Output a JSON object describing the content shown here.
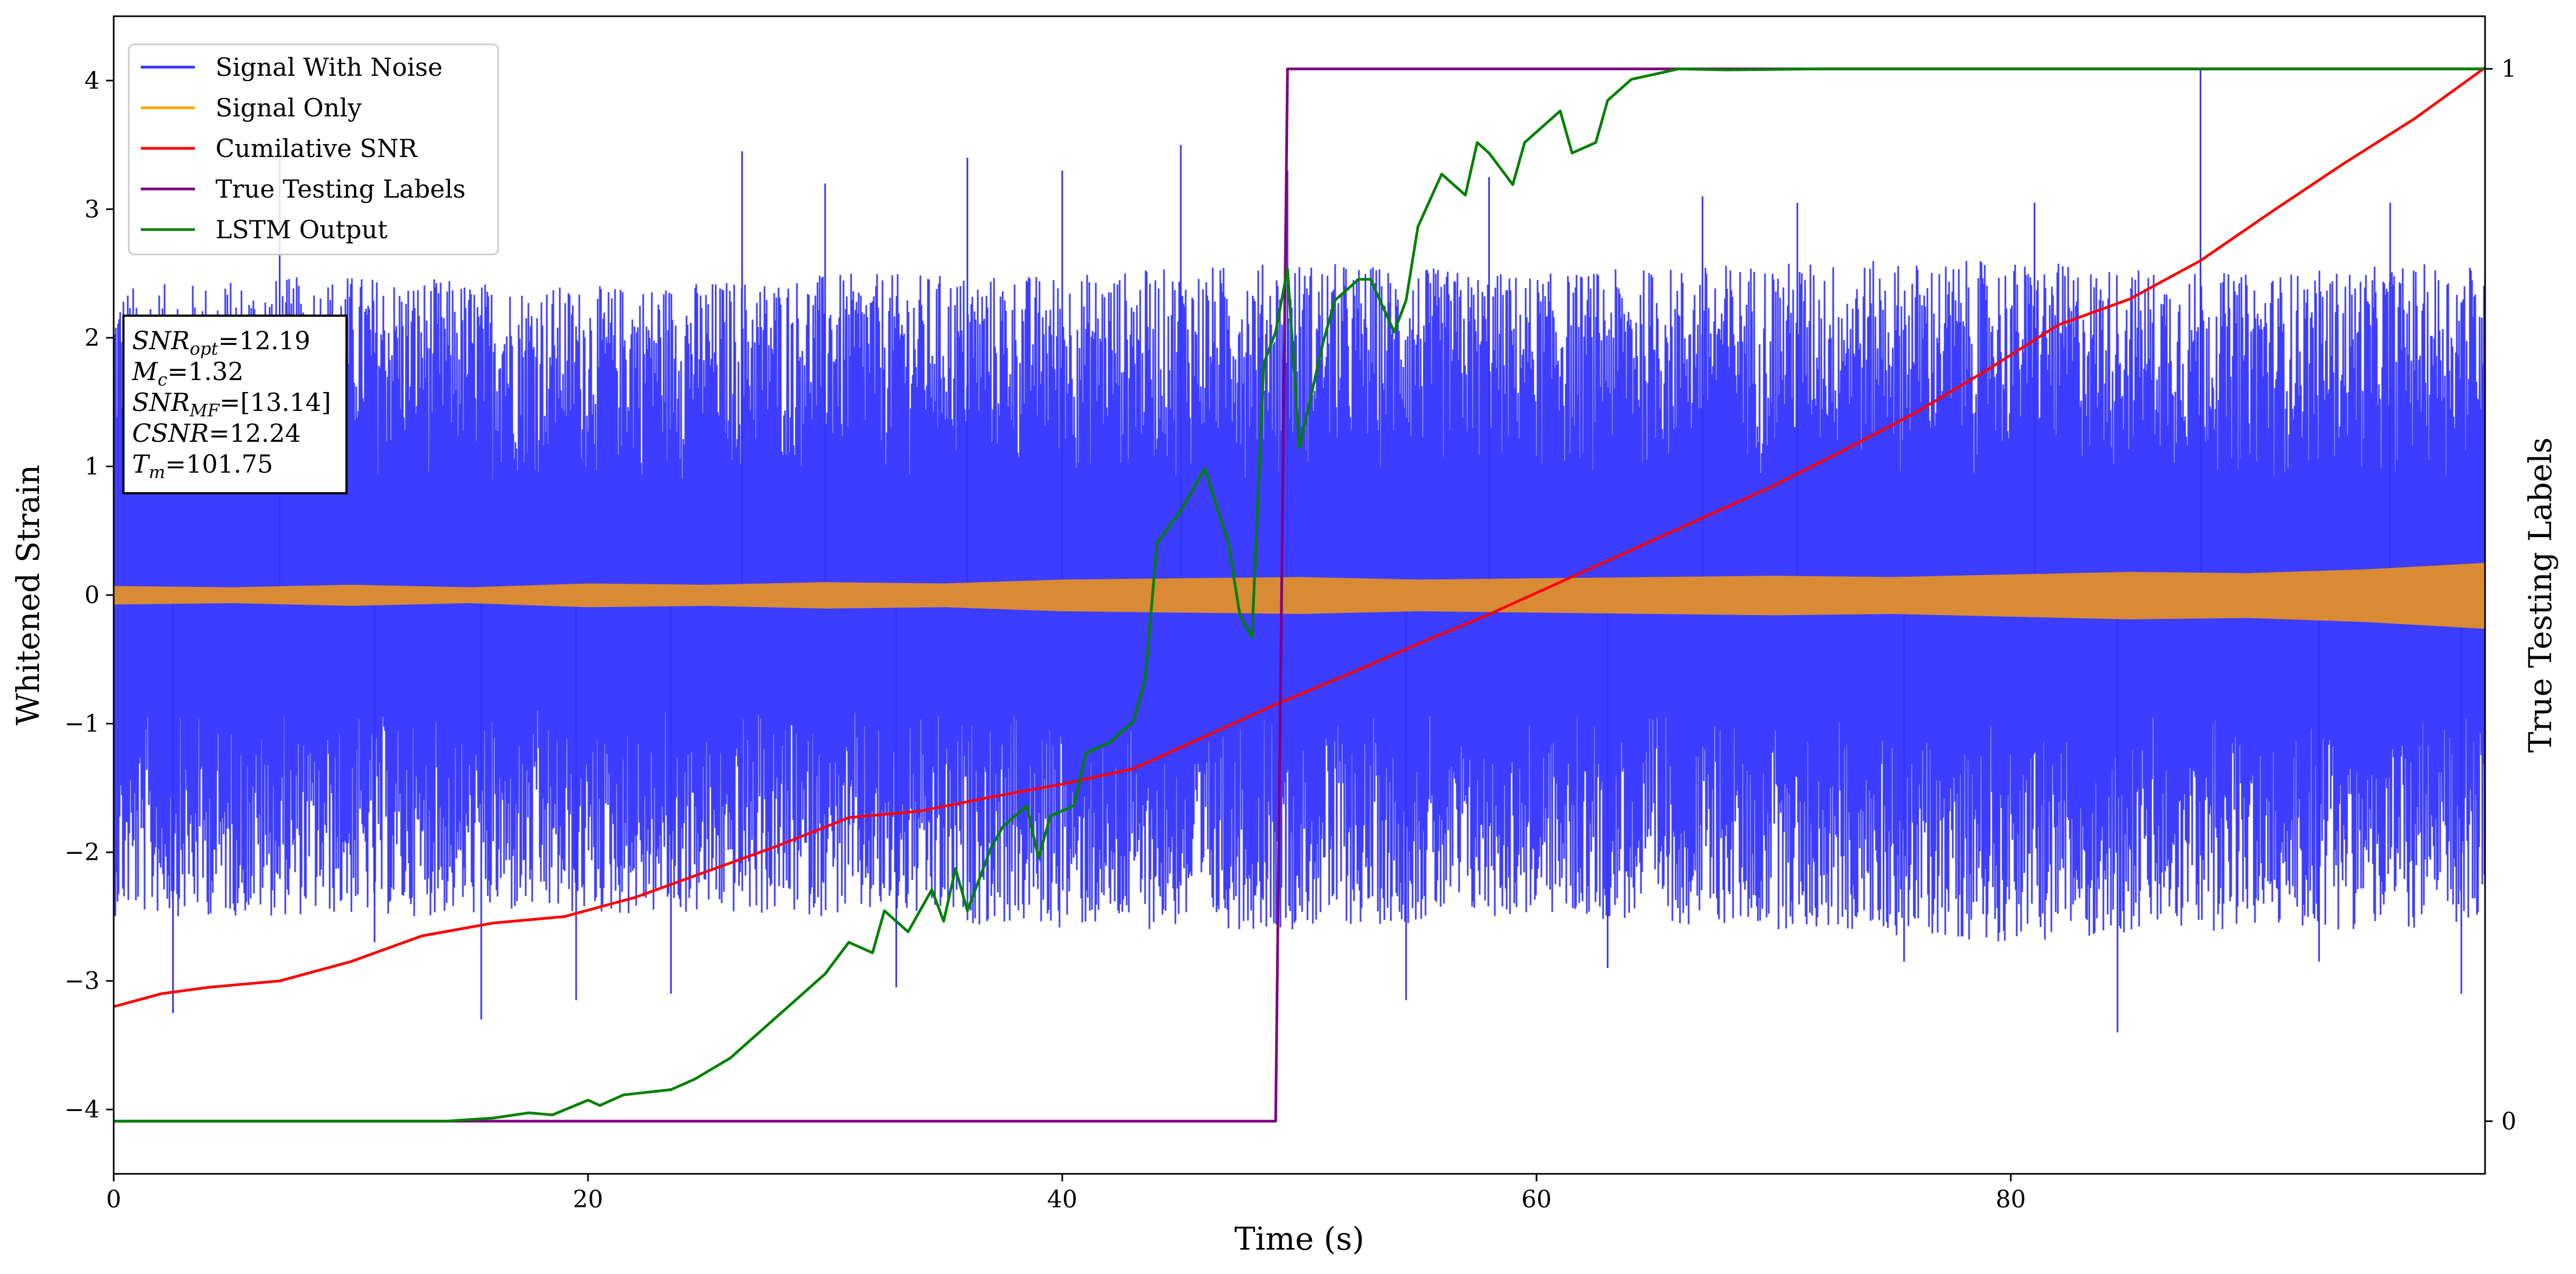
{
  "chart_data": {
    "type": "line",
    "xlabel": "Time (s)",
    "ylabel": "Whitened Strain",
    "y2label": "True Testing Labels",
    "xlim": [
      0,
      100
    ],
    "ylim": [
      -4.5,
      4.5
    ],
    "y2lim": [
      -0.05,
      1.05
    ],
    "x_ticks": [
      0,
      20,
      40,
      60,
      80
    ],
    "y_ticks": [
      -4,
      -3,
      -2,
      -1,
      0,
      1,
      2,
      3,
      4
    ],
    "y2_ticks": [
      0,
      1
    ],
    "legend_position": "top-left",
    "grid": false,
    "series": [
      {
        "name": "Signal With Noise",
        "color": "#3333ff",
        "kind": "noise",
        "envelope_x": [
          0,
          10,
          20,
          30,
          40,
          50,
          60,
          70,
          80,
          90,
          100
        ],
        "envelope_upper": [
          2.4,
          2.5,
          2.4,
          2.5,
          2.5,
          2.6,
          2.5,
          2.6,
          2.6,
          2.5,
          2.6
        ],
        "envelope_lower": [
          -2.5,
          -2.5,
          -2.5,
          -2.5,
          -2.6,
          -2.6,
          -2.5,
          -2.6,
          -2.7,
          -2.6,
          -2.6
        ],
        "spikes": [
          [
            2.5,
            -3.25
          ],
          [
            7,
            3.4
          ],
          [
            11,
            -2.7
          ],
          [
            15.5,
            -3.3
          ],
          [
            19.5,
            -3.15
          ],
          [
            23.5,
            -3.1
          ],
          [
            26.5,
            3.45
          ],
          [
            30,
            3.2
          ],
          [
            33,
            -3.05
          ],
          [
            36,
            3.4
          ],
          [
            40,
            3.3
          ],
          [
            45,
            3.5
          ],
          [
            49.5,
            3.3
          ],
          [
            54.5,
            -3.15
          ],
          [
            58,
            3.25
          ],
          [
            63,
            -2.9
          ],
          [
            67,
            3.1
          ],
          [
            71,
            3.05
          ],
          [
            75.5,
            -2.85
          ],
          [
            81,
            3.05
          ],
          [
            84.5,
            -3.4
          ],
          [
            88,
            4.1
          ],
          [
            93,
            -2.85
          ],
          [
            96,
            3.05
          ],
          [
            99,
            -3.1
          ]
        ]
      },
      {
        "name": "Signal Only",
        "color": "#ffa500",
        "kind": "chirp",
        "envelope_x": [
          0,
          5,
          10,
          15,
          20,
          25,
          30,
          35,
          40,
          45,
          50,
          55,
          60,
          65,
          70,
          75,
          80,
          85,
          90,
          95,
          99,
          100
        ],
        "envelope": [
          0.07,
          0.06,
          0.08,
          0.06,
          0.09,
          0.08,
          0.1,
          0.09,
          0.12,
          0.13,
          0.14,
          0.12,
          0.13,
          0.14,
          0.15,
          0.14,
          0.16,
          0.18,
          0.17,
          0.2,
          0.24,
          0.25
        ]
      },
      {
        "name": "Cumilative SNR",
        "color": "#ff0000",
        "x": [
          0,
          2,
          4,
          7,
          10,
          13,
          16,
          19,
          22,
          25,
          28,
          31,
          34,
          37,
          40,
          43,
          46,
          49,
          52,
          55,
          58,
          61,
          64,
          67,
          70,
          73,
          76,
          79,
          82,
          85,
          88,
          91,
          94,
          97,
          100
        ],
        "y": [
          -3.2,
          -3.1,
          -3.05,
          -3.0,
          -2.85,
          -2.65,
          -2.55,
          -2.5,
          -2.35,
          -2.15,
          -1.95,
          -1.73,
          -1.68,
          -1.57,
          -1.47,
          -1.35,
          -1.1,
          -0.85,
          -0.62,
          -0.38,
          -0.15,
          0.1,
          0.35,
          0.6,
          0.85,
          1.13,
          1.42,
          1.75,
          2.1,
          2.3,
          2.6,
          2.98,
          3.35,
          3.7,
          4.1
        ]
      },
      {
        "name": "True Testing Labels",
        "color": "#800080",
        "axis": "right",
        "x": [
          0,
          49,
          49.5,
          100
        ],
        "y": [
          0,
          0,
          1,
          1
        ]
      },
      {
        "name": "LSTM Output",
        "color": "#008000",
        "axis": "right",
        "x": [
          0,
          10,
          14,
          16,
          17.5,
          18.5,
          20,
          20.5,
          21.5,
          23.5,
          24.5,
          26,
          27,
          28,
          29,
          30,
          31,
          32,
          32.5,
          33.5,
          34.5,
          35,
          35.5,
          36,
          37,
          37.5,
          38.5,
          39,
          39.5,
          40.5,
          41,
          42,
          43,
          43.5,
          44,
          45,
          45.5,
          46,
          47,
          47.5,
          48,
          48.5,
          49,
          49.5,
          50,
          50.5,
          51,
          51.5,
          52.5,
          53,
          54,
          54.5,
          55,
          56,
          57,
          57.5,
          58,
          59,
          59.5,
          61,
          61.5,
          62.5,
          63,
          64,
          66,
          68,
          72,
          76,
          80,
          100
        ],
        "y": [
          0,
          0,
          0,
          0.003,
          0.008,
          0.006,
          0.02,
          0.015,
          0.025,
          0.03,
          0.04,
          0.06,
          0.08,
          0.1,
          0.12,
          0.14,
          0.17,
          0.16,
          0.2,
          0.18,
          0.22,
          0.19,
          0.24,
          0.2,
          0.26,
          0.28,
          0.3,
          0.25,
          0.29,
          0.3,
          0.35,
          0.36,
          0.38,
          0.42,
          0.55,
          0.58,
          0.6,
          0.62,
          0.55,
          0.48,
          0.46,
          0.72,
          0.75,
          0.81,
          0.64,
          0.69,
          0.74,
          0.78,
          0.8,
          0.8,
          0.75,
          0.78,
          0.85,
          0.9,
          0.88,
          0.93,
          0.92,
          0.89,
          0.93,
          0.96,
          0.92,
          0.93,
          0.97,
          0.99,
          1.0,
          0.999,
          1.0,
          1.0,
          1.0,
          1.0
        ]
      }
    ],
    "annotations": [
      {
        "sym": "SNR",
        "sub": "opt",
        "value": "=12.19"
      },
      {
        "sym": "M",
        "sub": "c",
        "value": "=1.32"
      },
      {
        "sym": "SNR",
        "sub": "MF",
        "value": "=[13.14]"
      },
      {
        "sym": "CSNR",
        "sub": "",
        "value": "=12.24"
      },
      {
        "sym": "T",
        "sub": "m",
        "value": "=101.75"
      }
    ]
  }
}
